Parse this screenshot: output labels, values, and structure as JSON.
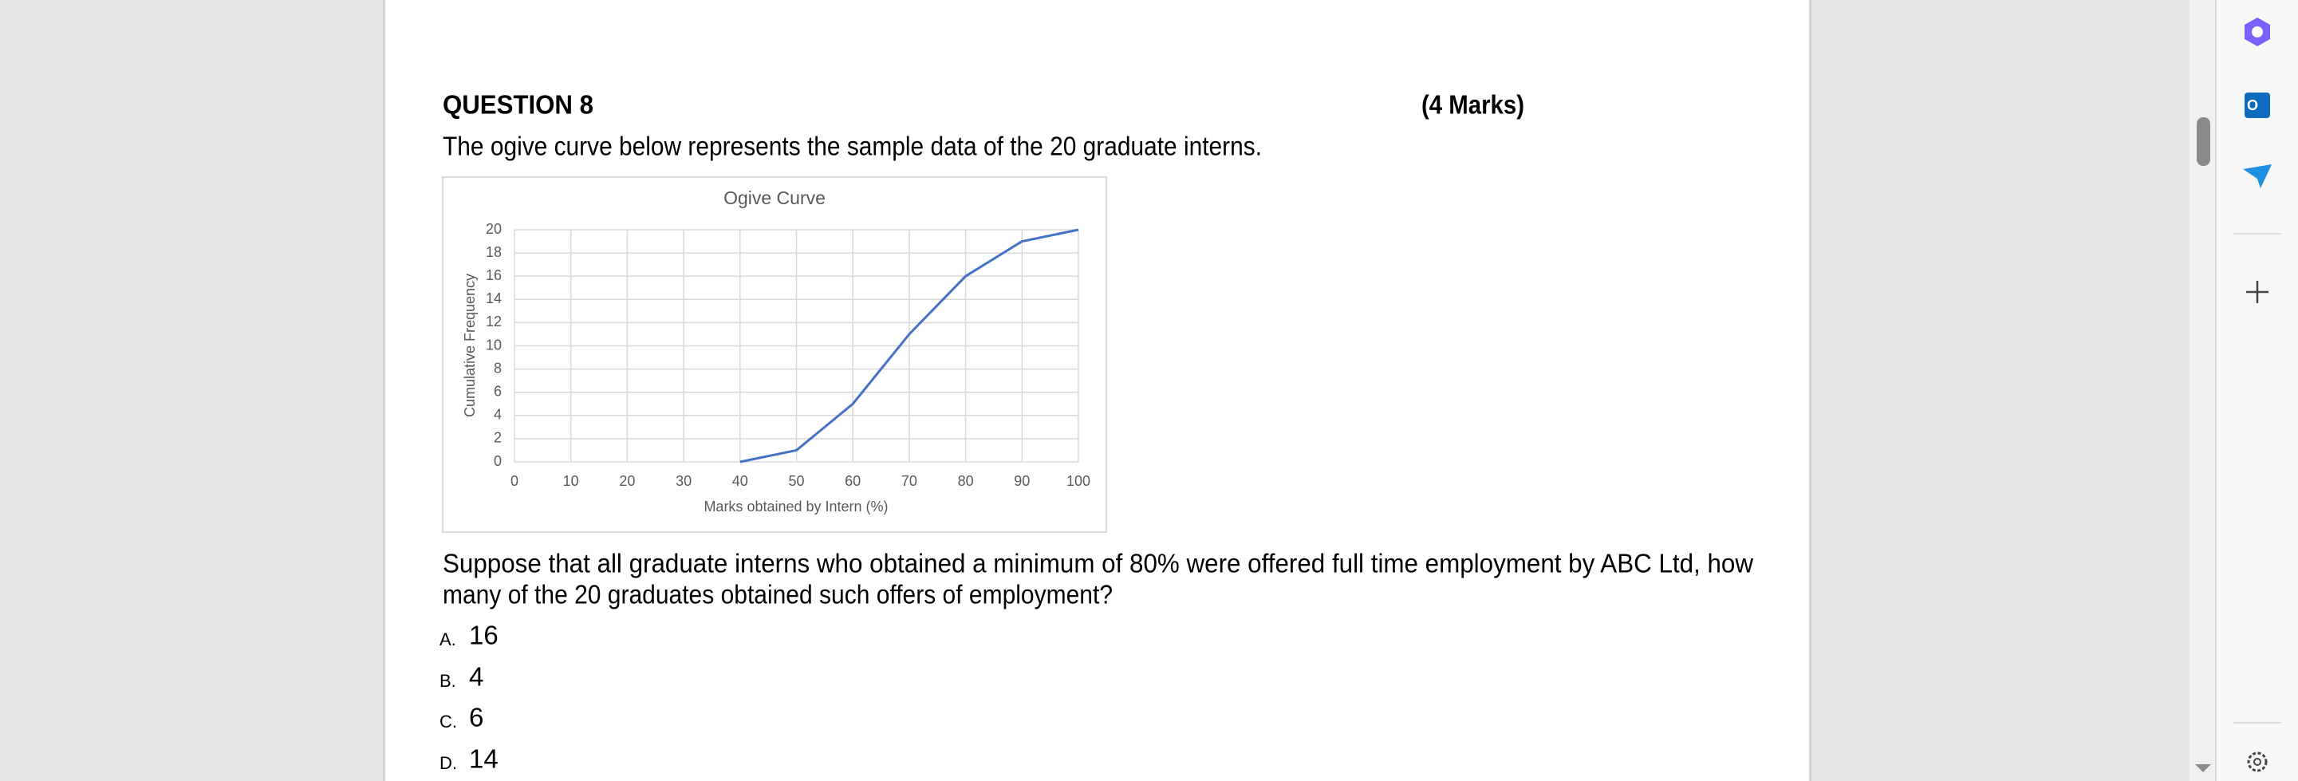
{
  "header": {
    "question": "QUESTION  8",
    "marks": "(4 Marks)"
  },
  "intro": "The ogive curve below represents the sample data of the 20 graduate interns.",
  "chart_data": {
    "type": "line",
    "title": "Ogive Curve",
    "x_label": "Marks obtained by Intern (%)",
    "y_label": "Cumulative Frequency",
    "x": [
      40,
      50,
      60,
      70,
      80,
      90,
      100
    ],
    "values": [
      0,
      1,
      5,
      11,
      16,
      19,
      20
    ],
    "color": "#4472c4",
    "xlim": [
      0,
      100
    ],
    "xticks": [
      0,
      10,
      20,
      30,
      40,
      50,
      60,
      70,
      80,
      90,
      100
    ],
    "ylim": [
      0,
      20
    ],
    "yticks": [
      0,
      2,
      4,
      6,
      8,
      10,
      12,
      14,
      16,
      18,
      20
    ],
    "grid": true
  },
  "question": {
    "lines": [
      "Suppose that all graduate interns who obtained a minimum of 80% were offered full time employment by ABC Ltd, how",
      "many of the 20 graduates obtained such offers of employment?"
    ]
  },
  "options": [
    {
      "letter": "A.",
      "text": "16"
    },
    {
      "letter": "B.",
      "text": "4"
    },
    {
      "letter": "C.",
      "text": "6"
    },
    {
      "letter": "D.",
      "text": "14"
    }
  ]
}
